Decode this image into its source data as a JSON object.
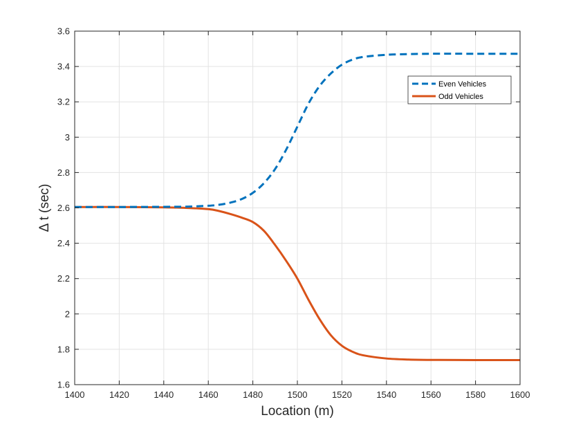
{
  "chart_data": {
    "type": "line",
    "title": "",
    "xlabel": "Location (m)",
    "ylabel": "Δ t (sec)",
    "xlim": [
      1400,
      1600
    ],
    "ylim": [
      1.6,
      3.6
    ],
    "xticks": [
      1400,
      1420,
      1440,
      1460,
      1480,
      1500,
      1520,
      1540,
      1560,
      1580,
      1600
    ],
    "yticks": [
      1.6,
      1.8,
      2,
      2.2,
      2.4,
      2.6,
      2.8,
      3,
      3.2,
      3.4,
      3.6
    ],
    "xtick_labels": [
      "1400",
      "1420",
      "1440",
      "1460",
      "1480",
      "1500",
      "1520",
      "1540",
      "1560",
      "1580",
      "1600"
    ],
    "ytick_labels": [
      "1.6",
      "1.8",
      "2",
      "2.2",
      "2.4",
      "2.6",
      "2.8",
      "3",
      "3.2",
      "3.4",
      "3.6"
    ],
    "grid": true,
    "legend_position": "top-right",
    "series": [
      {
        "name": "Even Vehicles",
        "color": "#0072BD",
        "line_style": "dashed",
        "x": [
          1400,
          1420,
          1440,
          1450,
          1460,
          1465,
          1470,
          1475,
          1480,
          1485,
          1490,
          1495,
          1500,
          1505,
          1510,
          1515,
          1520,
          1525,
          1530,
          1540,
          1550,
          1560,
          1580,
          1600
        ],
        "y": [
          2.605,
          2.605,
          2.606,
          2.607,
          2.612,
          2.618,
          2.63,
          2.65,
          2.685,
          2.74,
          2.82,
          2.93,
          3.06,
          3.19,
          3.29,
          3.36,
          3.41,
          3.44,
          3.455,
          3.466,
          3.47,
          3.472,
          3.472,
          3.472
        ]
      },
      {
        "name": "Odd Vehicles",
        "color": "#D95319",
        "line_style": "solid",
        "x": [
          1400,
          1420,
          1440,
          1450,
          1460,
          1465,
          1470,
          1475,
          1480,
          1485,
          1490,
          1495,
          1500,
          1505,
          1510,
          1515,
          1520,
          1525,
          1530,
          1540,
          1550,
          1560,
          1580,
          1600
        ],
        "y": [
          2.605,
          2.605,
          2.603,
          2.6,
          2.593,
          2.582,
          2.565,
          2.545,
          2.52,
          2.47,
          2.39,
          2.3,
          2.2,
          2.08,
          1.97,
          1.88,
          1.82,
          1.785,
          1.765,
          1.748,
          1.742,
          1.74,
          1.739,
          1.739
        ]
      }
    ]
  }
}
